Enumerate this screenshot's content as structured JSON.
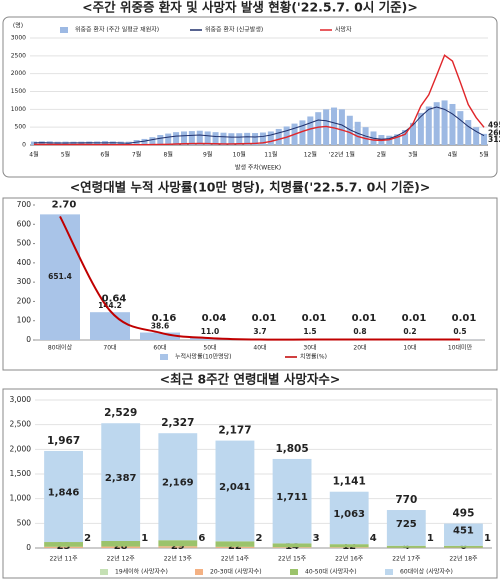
{
  "chart_data": [
    {
      "type": "combo",
      "title": "<주간 위중증 환자 및 사망자 발생 현황('22.5.7. 0시 기준)>",
      "ylabel": "(명)",
      "xlabel": "발생 주차(WEEK)",
      "ylim": [
        0,
        3000
      ],
      "yticks": [
        0,
        500,
        1000,
        1500,
        2000,
        2500,
        3000
      ],
      "grid": true,
      "categories": [
        "4월",
        null,
        null,
        null,
        "5월",
        null,
        null,
        null,
        null,
        "6월",
        null,
        null,
        null,
        "7월",
        null,
        null,
        null,
        "8월",
        null,
        null,
        null,
        null,
        "9월",
        null,
        null,
        null,
        "10월",
        null,
        null,
        null,
        "11월",
        null,
        null,
        null,
        null,
        "12월",
        null,
        null,
        null,
        "'22년 1월",
        null,
        null,
        null,
        null,
        "2월",
        null,
        null,
        null,
        "3월",
        null,
        null,
        null,
        null,
        "4월",
        null,
        null,
        null,
        "5월"
      ],
      "series": [
        {
          "name": "위중증 환자 (주간 일평균 재원자)",
          "type": "bar",
          "color": "#9db9e3",
          "values": [
            96,
            103,
            103,
            91,
            94,
            92,
            94,
            98,
            99,
            110,
            100,
            94,
            92,
            140,
            170,
            220,
            280,
            320,
            360,
            380,
            390,
            400,
            380,
            360,
            345,
            330,
            330,
            340,
            335,
            350,
            380,
            450,
            520,
            600,
            690,
            800,
            920,
            1000,
            1050,
            1000,
            820,
            650,
            500,
            380,
            280,
            260,
            300,
            420,
            620,
            900,
            1080,
            1200,
            1250,
            1150,
            950,
            700,
            500,
            312
          ]
        },
        {
          "name": "위중증 환자 (신규발생)",
          "type": "line",
          "color": "#1f2f6b",
          "values": [
            60,
            65,
            60,
            55,
            55,
            60,
            58,
            62,
            60,
            58,
            62,
            55,
            50,
            80,
            110,
            150,
            190,
            220,
            250,
            260,
            270,
            280,
            260,
            240,
            230,
            220,
            220,
            230,
            225,
            240,
            280,
            340,
            400,
            470,
            540,
            620,
            700,
            680,
            620,
            560,
            430,
            330,
            250,
            190,
            160,
            180,
            260,
            380,
            560,
            800,
            1000,
            1066,
            1000,
            870,
            700,
            520,
            380,
            260
          ]
        },
        {
          "name": "사망자",
          "type": "line",
          "color": "#e0262a",
          "values": [
            18,
            14,
            15,
            12,
            12,
            13,
            14,
            12,
            10,
            11,
            10,
            9,
            8,
            9,
            10,
            12,
            15,
            20,
            28,
            35,
            40,
            45,
            40,
            35,
            30,
            30,
            35,
            40,
            45,
            60,
            100,
            160,
            220,
            300,
            380,
            450,
            500,
            520,
            480,
            420,
            350,
            240,
            180,
            140,
            130,
            150,
            220,
            300,
            600,
            1094,
            1408,
            1957,
            2516,
            2352,
            1757,
            1135,
            770,
            495
          ]
        }
      ]
    },
    {
      "type": "bar-line",
      "title": "<연령대별 누적 사망률(10만 명당), 치명률('22.5.7. 0시 기준)>",
      "ylim": [
        0,
        700
      ],
      "yticks": [
        0,
        100,
        200,
        300,
        400,
        500,
        600,
        700
      ],
      "y2lim": [
        0,
        2.95
      ],
      "categories": [
        "80대이상",
        "70대",
        "60대",
        "50대",
        "40대",
        "30대",
        "20대",
        "10대",
        "10대미만"
      ],
      "series": [
        {
          "name": "누적사망률(10만명당)",
          "type": "bar",
          "color": "#a9c4e8",
          "values": [
            651.4,
            144.2,
            38.6,
            11.0,
            3.7,
            1.5,
            0.8,
            0.2,
            0.5
          ],
          "value_labels": [
            "651.4",
            "144.2",
            "38.6",
            "11.0",
            "3.7",
            "1.5",
            "0.8",
            "0.2",
            "0.5"
          ]
        },
        {
          "name": "치명률(%)",
          "type": "line",
          "axis": "y2",
          "color": "#c00000",
          "values": [
            2.7,
            0.64,
            0.16,
            0.04,
            0.01,
            0.01,
            0.01,
            0.01,
            0.01
          ],
          "value_labels": [
            "2.70",
            "0.64",
            "0.16",
            "0.04",
            "0.01",
            "0.01",
            "0.01",
            "0.01",
            "0.01"
          ]
        }
      ]
    },
    {
      "type": "stacked-bar",
      "title": "<최근 8주간 연령대별 사망자수>",
      "ylim": [
        0,
        3000
      ],
      "yticks": [
        0,
        500,
        {
          "value": 1000,
          "label": "1,000"
        },
        {
          "value": 1500,
          "label": "1,500"
        },
        {
          "value": 2000,
          "label": "2,000"
        },
        {
          "value": 2500,
          "label": "2,500"
        },
        {
          "value": 3000,
          "label": "3,000"
        }
      ],
      "categories": [
        "22년 11주",
        "22년 12주",
        "22년 13주",
        "22년 14주",
        "22년 15주",
        "22년 16주",
        "22년 17주",
        "22년 18주"
      ],
      "totals": [
        1967,
        2529,
        2327,
        2177,
        1805,
        1141,
        770,
        495
      ],
      "total_labels": [
        "1,967",
        "2,529",
        "2,327",
        "2,177",
        "1,805",
        "1,141",
        "770",
        "495"
      ],
      "series": [
        {
          "name": "19세이하 (사망자수)",
          "color": "#c5e0b4",
          "values": [
            2,
            1,
            6,
            2,
            3,
            4,
            1,
            1
          ]
        },
        {
          "name": "20-30대 (사망자수)",
          "color": "#f4b183",
          "values": [
            23,
            28,
            29,
            22,
            14,
            12,
            4,
            6
          ]
        },
        {
          "name": "40-50대 (사망자수)",
          "color": "#9bc36b",
          "values": [
            96,
            113,
            123,
            112,
            77,
            62,
            40,
            37
          ]
        },
        {
          "name": "60대이상 (사망자수)",
          "color": "#bdd7ee",
          "values": [
            1846,
            2387,
            2169,
            2041,
            1711,
            1063,
            725,
            451
          ],
          "value_labels": [
            "1,846",
            "2,387",
            "2,169",
            "2,041",
            "1,711",
            "1,063",
            "725",
            "451"
          ]
        }
      ]
    }
  ]
}
